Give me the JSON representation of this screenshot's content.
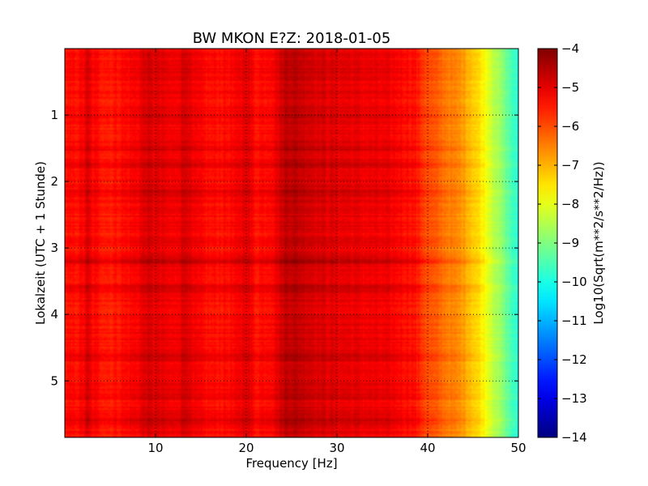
{
  "chart_data": {
    "type": "heatmap",
    "title": "BW MKON E?Z: 2018-01-05",
    "xlabel": "Frequency [Hz]",
    "ylabel": "Lokalzeit (UTC + 1 Stunde)",
    "colorbar_label": "Log10(Sqrt(m**2/s**2/Hz))",
    "xlim": [
      0,
      50
    ],
    "ylim": [
      5.85,
      0
    ],
    "x_ticks": [
      10,
      20,
      30,
      40,
      50
    ],
    "x_tick_labels": [
      "10",
      "20",
      "30",
      "40",
      "50"
    ],
    "y_ticks": [
      1,
      2,
      3,
      4,
      5
    ],
    "y_tick_labels": [
      "1",
      "2",
      "3",
      "4",
      "5"
    ],
    "colorbar_range": [
      -14,
      -4
    ],
    "colorbar_ticks": [
      -4,
      -5,
      -6,
      -7,
      -8,
      -9,
      -10,
      -11,
      -12,
      -13,
      -14
    ],
    "colorbar_tick_labels": [
      "−4",
      "−5",
      "−6",
      "−7",
      "−8",
      "−9",
      "−10",
      "−11",
      "−12",
      "−13",
      "−14"
    ],
    "colormap": "jet",
    "grid": true,
    "grid_style": "dotted",
    "spectrum_profile": {
      "frequency_hz": [
        0,
        2,
        2.5,
        3,
        5,
        8,
        9,
        10,
        12,
        13.5,
        14,
        16,
        19,
        20,
        21,
        23,
        24.5,
        26,
        28,
        30,
        33,
        36,
        38.5,
        40,
        42,
        44,
        45,
        46,
        47,
        48,
        49,
        50
      ],
      "log10_amplitude": [
        -5.5,
        -5.3,
        -4.9,
        -5.3,
        -5.5,
        -5.2,
        -4.9,
        -5.0,
        -5.2,
        -4.8,
        -5.2,
        -5.4,
        -5.3,
        -4.9,
        -5.4,
        -5.2,
        -4.6,
        -4.7,
        -4.9,
        -5.0,
        -5.1,
        -5.2,
        -5.4,
        -6.0,
        -6.4,
        -6.8,
        -7.2,
        -7.6,
        -8.2,
        -8.8,
        -9.4,
        -10.0
      ]
    },
    "time_bands_hours": [
      {
        "center": 0.35,
        "offset": 0.2
      },
      {
        "center": 1.0,
        "offset": 0.15
      },
      {
        "center": 1.5,
        "offset": 0.35
      },
      {
        "center": 1.75,
        "offset": 0.25
      },
      {
        "center": 2.15,
        "offset": 0.3
      },
      {
        "center": 3.2,
        "offset": 0.4
      },
      {
        "center": 3.6,
        "offset": 0.25
      },
      {
        "center": 4.65,
        "offset": 0.35
      },
      {
        "center": 5.2,
        "offset": 0.25
      },
      {
        "center": 5.6,
        "offset": 0.3
      }
    ]
  }
}
